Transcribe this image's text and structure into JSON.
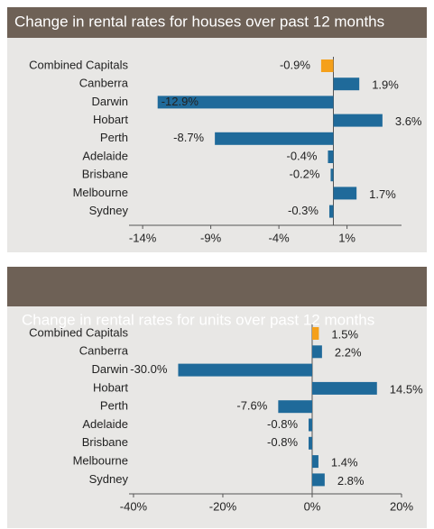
{
  "chart_data": [
    {
      "type": "barh",
      "title": "Change in rental rates for houses over past 12 months",
      "categories": [
        "Combined Capitals",
        "Canberra",
        "Darwin",
        "Hobart",
        "Perth",
        "Adelaide",
        "Brisbane",
        "Melbourne",
        "Sydney"
      ],
      "values": [
        -0.9,
        1.9,
        -12.9,
        3.6,
        -8.7,
        -0.4,
        -0.2,
        1.7,
        -0.3
      ],
      "value_labels": [
        "-0.9%",
        "1.9%",
        "-12.9%",
        "3.6%",
        "-8.7%",
        "-0.4%",
        "-0.2%",
        "1.7%",
        "-0.3%"
      ],
      "colors": [
        "#f5a01a",
        "#1f6a9a",
        "#1f6a9a",
        "#1f6a9a",
        "#1f6a9a",
        "#1f6a9a",
        "#1f6a9a",
        "#1f6a9a",
        "#1f6a9a"
      ],
      "xlim": [
        -15,
        5
      ],
      "xticks": [
        {
          "value": -14,
          "label": "-14%"
        },
        {
          "value": -9,
          "label": "-9%"
        },
        {
          "value": -4,
          "label": "-4%"
        },
        {
          "value": 1,
          "label": "1%"
        }
      ]
    },
    {
      "type": "barh",
      "title": "Change in rental rates for units over past 12 months",
      "categories": [
        "Combined Capitals",
        "Canberra",
        "Darwin",
        "Hobart",
        "Perth",
        "Adelaide",
        "Brisbane",
        "Melbourne",
        "Sydney"
      ],
      "values": [
        1.5,
        2.2,
        -30.0,
        14.5,
        -7.6,
        -0.8,
        -0.8,
        1.4,
        2.8
      ],
      "value_labels": [
        "1.5%",
        "2.2%",
        "-30.0%",
        "14.5%",
        "-7.6%",
        "-0.8%",
        "-0.8%",
        "1.4%",
        "2.8%"
      ],
      "colors": [
        "#f5a01a",
        "#1f6a9a",
        "#1f6a9a",
        "#1f6a9a",
        "#1f6a9a",
        "#1f6a9a",
        "#1f6a9a",
        "#1f6a9a",
        "#1f6a9a"
      ],
      "xlim": [
        -41,
        20
      ],
      "xticks": [
        {
          "value": -40,
          "label": "-40%"
        },
        {
          "value": -20,
          "label": "-20%"
        },
        {
          "value": 0,
          "label": "0%"
        },
        {
          "value": 20,
          "label": "20%"
        }
      ]
    }
  ]
}
